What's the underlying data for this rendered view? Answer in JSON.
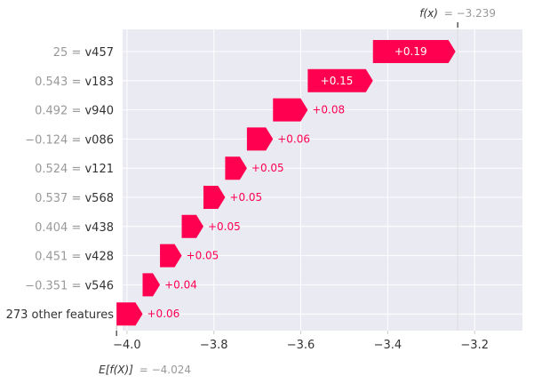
{
  "chart_data": {
    "type": "waterfall",
    "base_value": -4.024,
    "base_label_prefix": "E[f(X)]",
    "base_label_value": "= −4.024",
    "final_value": -3.239,
    "final_label_prefix": "f(x)",
    "final_label_value": "= −3.239",
    "xlim": [
      -4.01,
      -3.09
    ],
    "xticks": [
      -4.0,
      -3.8,
      -3.6,
      -3.4,
      -3.2
    ],
    "xtick_labels": [
      "−4.0",
      "−3.8",
      "−3.6",
      "−3.4",
      "−3.2"
    ],
    "grid": true,
    "colors": {
      "positive": "#ff0051",
      "background": "#eaeaf2",
      "grid": "#ffffff",
      "value_muted": "#999999",
      "feature": "#333333"
    },
    "rows": [
      {
        "value": "25",
        "feature": "v457",
        "contribution": 0.19,
        "label": "+0.19"
      },
      {
        "value": "0.543",
        "feature": "v183",
        "contribution": 0.15,
        "label": "+0.15"
      },
      {
        "value": "0.492",
        "feature": "v940",
        "contribution": 0.08,
        "label": "+0.08"
      },
      {
        "value": "−0.124",
        "feature": "v086",
        "contribution": 0.06,
        "label": "+0.06"
      },
      {
        "value": "0.524",
        "feature": "v121",
        "contribution": 0.05,
        "label": "+0.05"
      },
      {
        "value": "0.537",
        "feature": "v568",
        "contribution": 0.05,
        "label": "+0.05"
      },
      {
        "value": "0.404",
        "feature": "v438",
        "contribution": 0.05,
        "label": "+0.05"
      },
      {
        "value": "0.451",
        "feature": "v428",
        "contribution": 0.05,
        "label": "+0.05"
      },
      {
        "value": "−0.351",
        "feature": "v546",
        "contribution": 0.04,
        "label": "+0.04"
      },
      {
        "value": "",
        "feature": "273 other features",
        "contribution": 0.06,
        "label": "+0.06"
      }
    ]
  }
}
